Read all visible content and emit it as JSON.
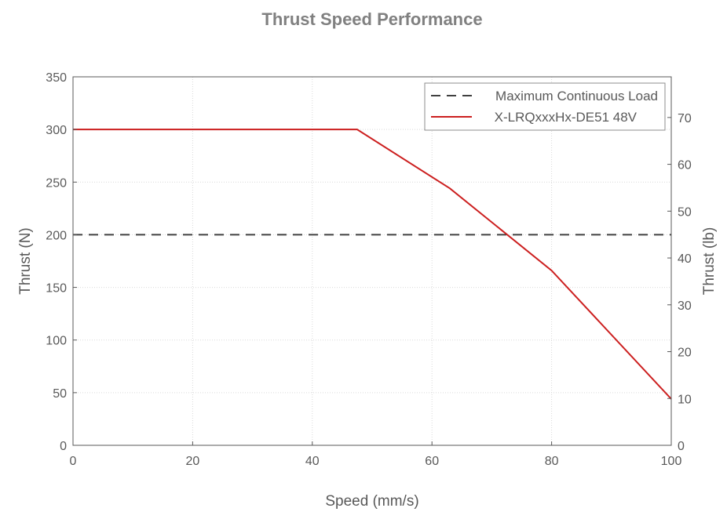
{
  "chart_data": {
    "type": "line",
    "title": "Thrust Speed Performance",
    "xlabel": "Speed (mm/s)",
    "ylabel": "Thrust (N)",
    "y2label": "Thrust (lb)",
    "xlim": [
      0,
      100
    ],
    "ylim": [
      0,
      350
    ],
    "y2lim": [
      0,
      78.68
    ],
    "x_ticks": [
      0,
      20,
      40,
      60,
      80,
      100
    ],
    "y_ticks": [
      0,
      50,
      100,
      150,
      200,
      250,
      300,
      350
    ],
    "y2_ticks": [
      0,
      10,
      20,
      30,
      40,
      50,
      60,
      70
    ],
    "grid": true,
    "legend_position": "top-right",
    "series": [
      {
        "name": "Maximum Continuous Load",
        "style": "dashed",
        "color": "#404040",
        "x": [
          0,
          100
        ],
        "y": [
          200,
          200
        ]
      },
      {
        "name": "X-LRQxxxHx-DE51 48V",
        "style": "solid",
        "color": "#cc1f1f",
        "x": [
          0,
          47.5,
          63,
          80,
          100
        ],
        "y": [
          300,
          300,
          244,
          166,
          44
        ]
      }
    ]
  }
}
